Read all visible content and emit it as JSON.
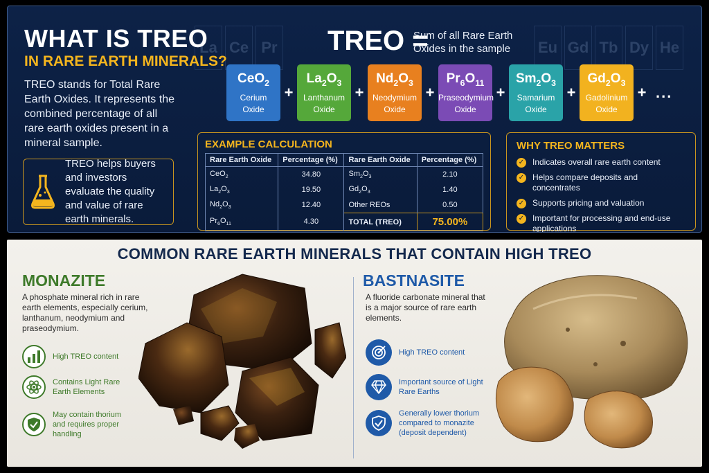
{
  "header": {
    "title": "WHAT IS TREO",
    "subtitle": "IN RARE EARTH MINERALS?",
    "intro": "TREO stands for Total Rare Earth Oxides. It represents the combined percentage of all rare earth oxides present in a mineral sample.",
    "help_text": "TREO helps buyers and investors evaluate the quality and value of rare earth minerals."
  },
  "periodic_bg_left": [
    "La",
    "Ce",
    "Pr"
  ],
  "periodic_bg_right": [
    "Eu",
    "Gd",
    "Tb",
    "Dy",
    "He"
  ],
  "equation": {
    "lhs": "TREO =",
    "definition": "Sum of all Rare Earth Oxides in the sample",
    "oxides": [
      {
        "sym": "Ce",
        "sub1": "",
        "o": "O",
        "sub2": "2",
        "name1": "Cerium",
        "name2": "Oxide",
        "color": "#2f74c6"
      },
      {
        "sym": "La",
        "sub1": "2",
        "o": "O",
        "sub2": "3",
        "name1": "Lanthanum",
        "name2": "Oxide",
        "color": "#55a83a"
      },
      {
        "sym": "Nd",
        "sub1": "2",
        "o": "O",
        "sub2": "3",
        "name1": "Neodymium",
        "name2": "Oxide",
        "color": "#e8801f"
      },
      {
        "sym": "Pr",
        "sub1": "6",
        "o": "O",
        "sub2": "11",
        "name1": "Praseodymium",
        "name2": "Oxide",
        "color": "#7b4bb5"
      },
      {
        "sym": "Sm",
        "sub1": "2",
        "o": "O",
        "sub2": "3",
        "name1": "Samarium",
        "name2": "Oxide",
        "color": "#2aa3a8"
      },
      {
        "sym": "Gd",
        "sub1": "2",
        "o": "O",
        "sub2": "3",
        "name1": "Gadolinium",
        "name2": "Oxide",
        "color": "#f2b21f"
      }
    ],
    "plus": "+",
    "more": "+ ..."
  },
  "calculation": {
    "title": "EXAMPLE CALCULATION",
    "headers": [
      "Rare Earth Oxide",
      "Percentage (%)",
      "Rare Earth Oxide",
      "Percentage (%)"
    ],
    "rows": [
      {
        "l_sym": "Ce",
        "l_s1": "",
        "l_s2": "2",
        "l_val": "34.80",
        "r_sym": "Sm",
        "r_s1": "2",
        "r_s2": "3",
        "r_val": "2.10"
      },
      {
        "l_sym": "La",
        "l_s1": "2",
        "l_s2": "3",
        "l_val": "19.50",
        "r_sym": "Gd",
        "r_s1": "2",
        "r_s2": "3",
        "r_val": "1.40"
      },
      {
        "l_sym": "Nd",
        "l_s1": "2",
        "l_s2": "3",
        "l_val": "12.40",
        "r_text": "Other REOs",
        "r_val": "0.50"
      },
      {
        "l_sym": "Pr",
        "l_s1": "6",
        "l_s2": "11",
        "l_val": "4.30",
        "r_text": "TOTAL (TREO)",
        "r_val": "75.00%",
        "total": true
      }
    ]
  },
  "why": {
    "title": "WHY TREO MATTERS",
    "items": [
      "Indicates overall rare earth content",
      "Helps compare deposits and concentrates",
      "Supports pricing and valuation",
      "Important for processing and end-use applications"
    ]
  },
  "minerals": {
    "title": "COMMON RARE EARTH MINERALS THAT CONTAIN HIGH TREO",
    "monazite": {
      "name": "MONAZITE",
      "desc": "A phosphate mineral rich in rare earth elements, especially cerium, lanthanum, neodymium and praseodymium.",
      "features": [
        "High TREO content",
        "Contains Light Rare Earth Elements",
        "May contain thorium and requires proper handling"
      ],
      "icons": [
        "bar-chart-icon",
        "atom-icon",
        "shield-check-icon"
      ]
    },
    "bastnasite": {
      "name": "BASTNASITE",
      "desc": "A fluoride carbonate mineral that is a major source of rare earth elements.",
      "features": [
        "High TREO content",
        "Important source of Light Rare Earths",
        "Generally lower thorium compared to monazite (deposit dependent)"
      ],
      "icons": [
        "target-icon",
        "diamond-icon",
        "shield-check-icon"
      ]
    }
  },
  "colors": {
    "navy": "#0a1b3a",
    "gold": "#f4b51e",
    "green": "#3e7a2a",
    "blue": "#1f5aa8"
  }
}
